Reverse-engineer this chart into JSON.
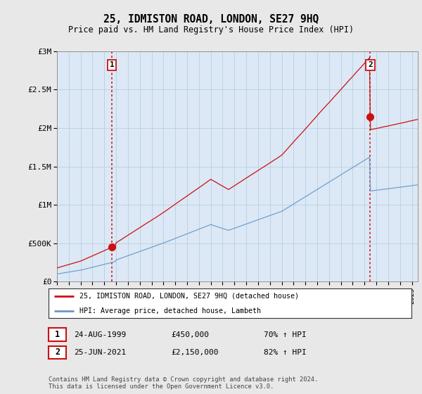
{
  "title": "25, IDMISTON ROAD, LONDON, SE27 9HQ",
  "subtitle": "Price paid vs. HM Land Registry's House Price Index (HPI)",
  "ylim": [
    0,
    3000000
  ],
  "yticks": [
    0,
    500000,
    1000000,
    1500000,
    2000000,
    2500000,
    3000000
  ],
  "ytick_labels": [
    "£0",
    "£500K",
    "£1M",
    "£1.5M",
    "£2M",
    "£2.5M",
    "£3M"
  ],
  "background_color": "#e8e8e8",
  "plot_bg_color": "#dce8f5",
  "grid_color": "#b8cfe0",
  "hpi_color": "#6699cc",
  "price_color": "#cc1111",
  "t1": 1999.65,
  "p1": 450000,
  "t2": 2021.48,
  "p2": 2150000,
  "xmin": 1995.0,
  "xmax": 2025.5,
  "legend_line1": "25, IDMISTON ROAD, LONDON, SE27 9HQ (detached house)",
  "legend_line2": "HPI: Average price, detached house, Lambeth",
  "annotation1": [
    "1",
    "24-AUG-1999",
    "£450,000",
    "70% ↑ HPI"
  ],
  "annotation2": [
    "2",
    "25-JUN-2021",
    "£2,150,000",
    "82% ↑ HPI"
  ],
  "footnote": "Contains HM Land Registry data © Crown copyright and database right 2024.\nThis data is licensed under the Open Government Licence v3.0."
}
